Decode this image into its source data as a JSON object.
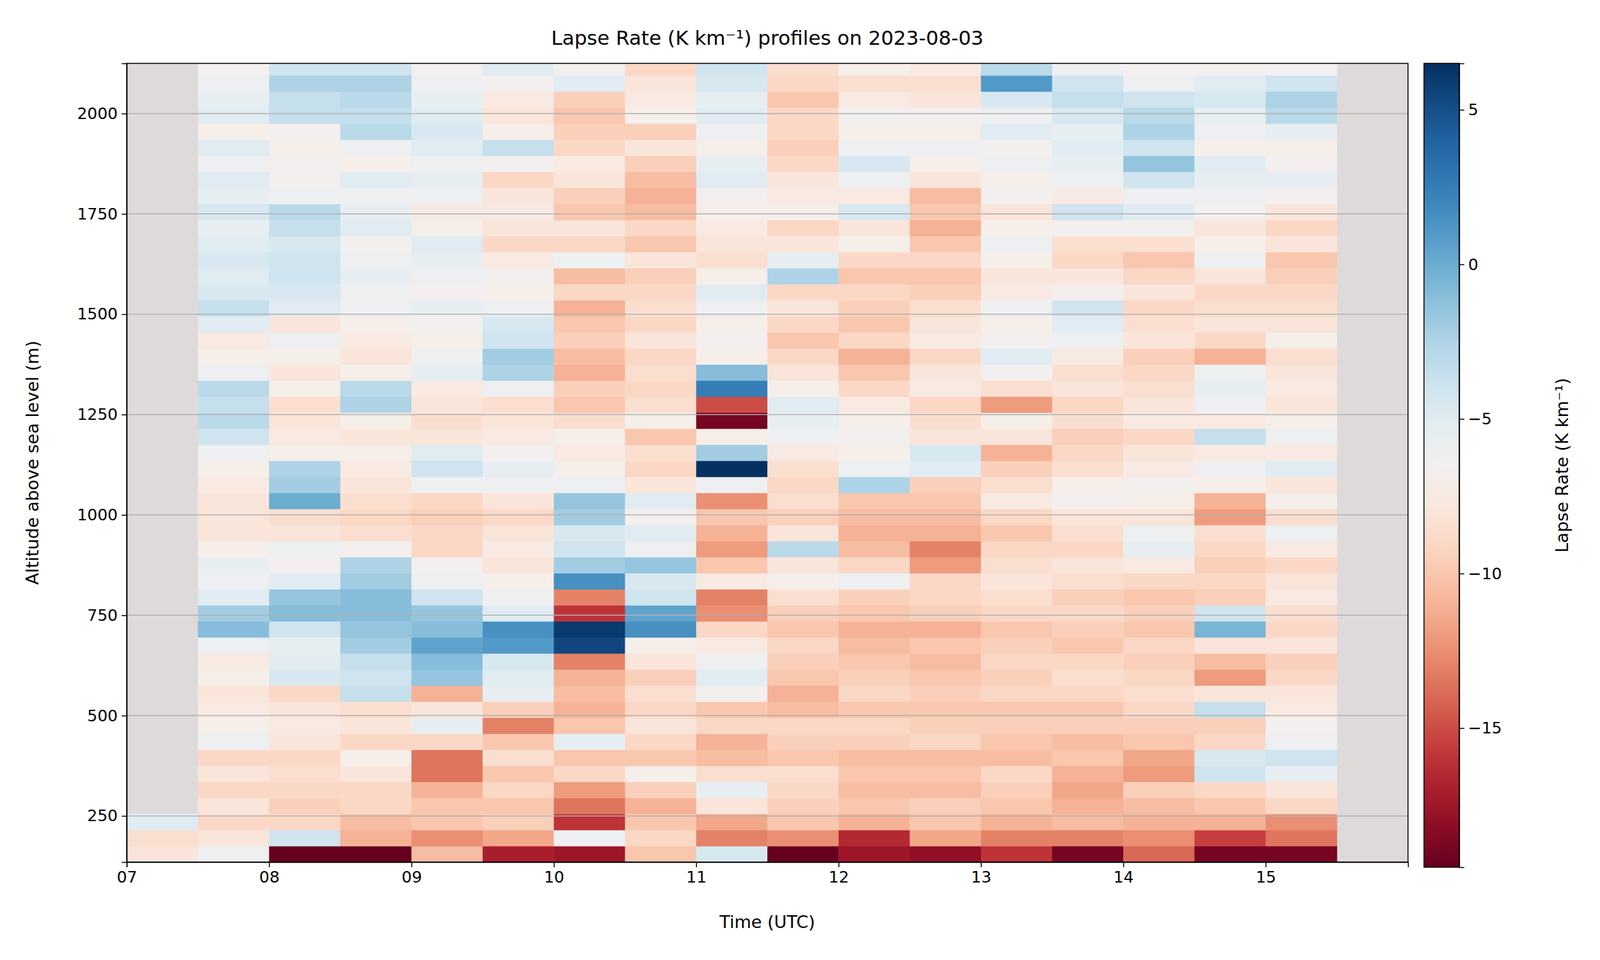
{
  "chart_data": {
    "type": "heatmap",
    "title": "Lapse Rate (K km⁻¹) profiles on 2023-08-03",
    "xlabel": "Time (UTC)",
    "ylabel": "Altitude above sea level (m)",
    "color": "RdBu",
    "grid": true,
    "xlim": [
      7,
      16
    ],
    "xticks": [
      {
        "value": 7,
        "label": "07"
      },
      {
        "value": 8,
        "label": "08"
      },
      {
        "value": 9,
        "label": "09"
      },
      10,
      11,
      12,
      13,
      14,
      15
    ],
    "ylim": [
      135,
      2125
    ],
    "yticks": [
      250,
      500,
      750,
      1000,
      1250,
      1500,
      1750,
      2000
    ],
    "colorbar": {
      "label": "Lapse Rate (K km⁻¹)",
      "range": [
        -19.5,
        6.5
      ],
      "ticks": [
        {
          "value": -15,
          "label": "−15"
        },
        {
          "value": -10,
          "label": "−10"
        },
        {
          "value": -5,
          "label": "−5"
        },
        0,
        5
      ]
    },
    "x": [
      7.25,
      7.75,
      8.25,
      8.75,
      9.25,
      9.75,
      10.25,
      10.75,
      11.25,
      11.75,
      12.25,
      12.75,
      13.25,
      13.75,
      14.25,
      14.75,
      15.25,
      15.75
    ],
    "y": [
      155,
      195,
      235,
      275,
      315,
      355,
      395,
      435,
      475,
      515,
      555,
      595,
      635,
      675,
      715,
      755,
      795,
      835,
      875,
      915,
      955,
      995,
      1035,
      1075,
      1115,
      1155,
      1195,
      1235,
      1275,
      1315,
      1355,
      1395,
      1435,
      1475,
      1515,
      1555,
      1595,
      1635,
      1675,
      1715,
      1755,
      1795,
      1835,
      1875,
      1915,
      1955,
      1995,
      2035,
      2075,
      2115
    ],
    "values": [
      [
        -8,
        -8.5,
        -5,
        null,
        null,
        null,
        null,
        null,
        null,
        null,
        null,
        null,
        null,
        null,
        null,
        null,
        null,
        null,
        null,
        null,
        null,
        null,
        null,
        null,
        null,
        null,
        null,
        null,
        null,
        null,
        null,
        null,
        null,
        null,
        null,
        null,
        null,
        null,
        null,
        null,
        null,
        null,
        null,
        null,
        null,
        null,
        null,
        null,
        null,
        null
      ],
      [
        -6,
        -8,
        -9,
        -8,
        -9,
        -8,
        -9,
        -6,
        -7,
        -7.5,
        -8,
        -7,
        -7.5,
        -6,
        -1,
        -2,
        -5,
        -6,
        -5.5,
        -7,
        -8,
        -8,
        -8,
        -7.5,
        -7,
        -6,
        -4,
        -3,
        -3.5,
        -3,
        -6,
        -7,
        -7.5,
        -5,
        -3.5,
        -4.5,
        -5,
        -4.5,
        -5,
        -5.5,
        -4.5,
        -5.5,
        -5,
        -6,
        -5,
        -7,
        -5,
        -5.5,
        -6,
        -6.5
      ],
      [
        -19.5,
        -4,
        -9,
        -9.5,
        -9,
        -8.5,
        -9,
        -8,
        -7.5,
        -8,
        -9,
        -4.5,
        -5,
        -5.5,
        -4,
        -1,
        -1.5,
        -5,
        -6.5,
        -6,
        -8,
        -8.5,
        0,
        -2,
        -2.5,
        -7,
        -7.5,
        -8,
        -8.5,
        -7,
        -8,
        -7,
        -6,
        -8,
        -5,
        -4.5,
        -4,
        -4,
        -4.5,
        -3.5,
        -3,
        -6,
        -6.5,
        -6.5,
        -7,
        -6.5,
        -3.5,
        -3.5,
        -2.5,
        -4
      ],
      [
        -19.5,
        -11,
        -10.5,
        -9,
        -9,
        -8,
        -7,
        -9,
        -8,
        -8.5,
        -3.5,
        -4,
        -3.5,
        -2,
        -1.5,
        -1,
        -1,
        -2,
        -2.5,
        -6.5,
        -8.5,
        -9,
        -8.5,
        -8,
        -7.5,
        -7,
        -8,
        -7,
        -2.5,
        -3,
        -7,
        -8,
        -7.5,
        -7,
        -6,
        -6,
        -5.5,
        -6,
        -6.5,
        -5,
        -5.5,
        -6,
        -5,
        -7,
        -6,
        -3,
        -3.5,
        -3,
        -2.5,
        -4
      ],
      [
        -10.5,
        -12.5,
        -10,
        -10,
        -11,
        -13.5,
        -13.5,
        -9,
        -5.5,
        -8,
        -11,
        -1.5,
        -1,
        0.5,
        -1,
        -1.5,
        -4,
        -6,
        -6.5,
        -9,
        -9,
        -9.5,
        -9,
        -6,
        -4,
        -5,
        -8,
        -8.5,
        -8,
        -7.5,
        -5.5,
        -6,
        -7,
        -6.5,
        -5.5,
        -6.5,
        -6,
        -5.5,
        -5,
        -7,
        -7.5,
        -6,
        -5.5,
        -6,
        -5,
        -4.5,
        -5,
        -5.5,
        -6,
        -6.5
      ],
      [
        -17,
        -11.5,
        -9.5,
        -10,
        -9,
        -10,
        -8.5,
        -10,
        -13,
        -9.5,
        -5.5,
        -5,
        -4.5,
        1,
        1.5,
        -5,
        -6,
        -7,
        -8,
        -7.5,
        -8,
        -9,
        -8,
        -6,
        -5.5,
        -6.5,
        -7.5,
        -8,
        -8.5,
        -6,
        -2.5,
        -2,
        -4,
        -4.5,
        -6,
        -7,
        -6.5,
        -7.5,
        -9,
        -8,
        -7.5,
        -8,
        -9,
        -6.5,
        -3.5,
        -7,
        -8,
        -7.5,
        -6.5,
        -5
      ],
      [
        -17.5,
        -6,
        -16,
        -13.5,
        -12,
        -9,
        -10,
        -5.5,
        -10,
        -11,
        -10.5,
        -11,
        -13,
        5.5,
        6,
        -16,
        -13,
        1.5,
        -2,
        -4,
        -4.5,
        -2,
        -1.5,
        -6,
        -7,
        -7.5,
        -7,
        -8.5,
        -10,
        -9.5,
        -11,
        -10.5,
        -9.5,
        -10,
        -11,
        -9,
        -10.5,
        -6,
        -9,
        -8,
        -10,
        -9.5,
        -8,
        -7.5,
        -9,
        -9.5,
        -10,
        -9.5,
        -5,
        -6.5
      ],
      [
        -10,
        -9,
        -10,
        -11,
        -9.5,
        -7,
        -10,
        -9,
        -8,
        -9,
        -8.5,
        -9.5,
        -8,
        -7,
        1.5,
        0.5,
        -4,
        -4.5,
        -1.5,
        -6,
        -5,
        -6.5,
        -5,
        -8,
        -9,
        -8.5,
        -10,
        -7,
        -8.5,
        -9,
        -8.5,
        -9,
        -8,
        -9,
        -8.5,
        -9,
        -9.5,
        -8,
        -10,
        -9,
        -10.5,
        -11,
        -10.5,
        -9.5,
        -8,
        -9.5,
        -7,
        -7.5,
        -8,
        -9
      ],
      [
        -4.5,
        -13,
        -11.5,
        -8,
        -5.5,
        -8.5,
        -10.5,
        -11,
        -9,
        -10,
        -6.5,
        -5,
        -6,
        -7.5,
        -9,
        -12.5,
        -13,
        -7.5,
        -10,
        -12,
        -11,
        -10,
        -12.5,
        -6,
        6.5,
        -2,
        -7,
        -19,
        -15,
        2.5,
        -1,
        -7,
        -6.5,
        -7,
        -6,
        -5,
        -7,
        -8.5,
        -8,
        -7.5,
        -7,
        -6.5,
        -5,
        -5.5,
        -7,
        -6,
        -5,
        -5.5,
        -4.5,
        -4
      ],
      [
        -19.5,
        -12.5,
        -10,
        -9.5,
        -9,
        -8.5,
        -10,
        -9.5,
        -9,
        -10.5,
        -11,
        -10,
        -9.5,
        -9,
        -10,
        -9.5,
        -8.5,
        -7,
        -8,
        -3,
        -8,
        -9.5,
        -8.5,
        -9,
        -8.5,
        -7.5,
        -6,
        -5.5,
        -5,
        -7,
        -8,
        -9,
        -10,
        -9,
        -8,
        -9,
        -2.5,
        -5.5,
        -8,
        -9,
        -7,
        -7.5,
        -8,
        -9,
        -9.5,
        -9,
        -9,
        -10,
        -9,
        -8.5
      ],
      [
        -17.5,
        -16.5,
        -11,
        -10,
        -10.5,
        -10,
        -10.5,
        -9.5,
        -9,
        -10,
        -9,
        -9.5,
        -10,
        -10.5,
        -11,
        -10,
        -9.5,
        -6,
        -9,
        -10.5,
        -11,
        -10.5,
        -10,
        -2.5,
        -6,
        -7,
        -6.5,
        -7,
        -7.5,
        -9,
        -10,
        -11,
        -9,
        -10,
        -9.5,
        -9,
        -10,
        -9,
        -7,
        -8,
        -4.5,
        -7.5,
        -6,
        -4.5,
        -6,
        -7,
        -6.5,
        -7.5,
        -8.5,
        -7
      ],
      [
        -18,
        -11.5,
        -10,
        -9.5,
        -10.5,
        -10,
        -10.5,
        -9,
        -9.5,
        -10,
        -9.5,
        -10,
        -10.5,
        -10,
        -11,
        -9.5,
        -9,
        -9,
        -12,
        -13,
        -11,
        -10.5,
        -10,
        -9.5,
        -5,
        -4.5,
        -8,
        -8.5,
        -9,
        -7.5,
        -8,
        -9,
        -7.5,
        -8,
        -8.5,
        -9.5,
        -10,
        -9,
        -10,
        -11,
        -10,
        -10.5,
        -8,
        -7,
        -6,
        -7,
        -6.5,
        -8,
        -8.5,
        -7.5
      ],
      [
        -16,
        -13,
        -11,
        -10,
        -9.5,
        -9,
        -10.5,
        -10,
        -9.5,
        -10,
        -9,
        -9.5,
        -9,
        -9.5,
        -10,
        -9,
        -8.5,
        -8,
        -8.5,
        -9,
        -10,
        -9,
        -7.5,
        -8.5,
        -9.5,
        -11,
        -8,
        -7,
        -12,
        -8.5,
        -6.5,
        -5,
        -6.5,
        -7,
        -6,
        -7.5,
        -8,
        -7,
        -6,
        -7,
        -8,
        -6.5,
        -7,
        -6,
        -6.5,
        -5,
        -6,
        -4.5,
        1,
        -3
      ],
      [
        -19,
        -13,
        -10.5,
        -11,
        -11.5,
        -11,
        -10,
        -10.5,
        -9.5,
        -10,
        -9,
        -8.5,
        -9,
        -10,
        -9.5,
        -9,
        -9.5,
        -8.5,
        -8,
        -9,
        -8.5,
        -8,
        -6.5,
        -7,
        -8.5,
        -9,
        -9.5,
        -8.5,
        -9,
        -8,
        -8.5,
        -7.5,
        -6,
        -5,
        -4,
        -6.5,
        -8,
        -9,
        -8.5,
        -6.5,
        -4,
        -7.5,
        -6,
        -5.5,
        -5,
        -5.5,
        -4.5,
        -3.5,
        -4,
        -6
      ],
      [
        -14,
        -12.5,
        -11,
        -10.5,
        -9.5,
        -12,
        -11.5,
        -10,
        -9.5,
        -9,
        -8.5,
        -9,
        -9.5,
        -9,
        -10,
        -9.5,
        -10,
        -9,
        -7.5,
        -5.5,
        -6,
        -8,
        -7,
        -6.5,
        -7.5,
        -8,
        -9,
        -7.5,
        -8,
        -8.5,
        -9,
        -9.5,
        -8,
        -8.5,
        -9,
        -8,
        -9,
        -10,
        -8.5,
        -6.5,
        -5,
        -6,
        -4,
        -1.5,
        -4,
        -2.5,
        -3,
        -4,
        -6,
        -6.5
      ],
      [
        -19,
        -15.5,
        -11,
        -10,
        -9,
        -4,
        -4.5,
        -9,
        -9.5,
        -3.5,
        -8,
        -12,
        -10.5,
        -8,
        -0.5,
        -4,
        -9.5,
        -9,
        -9.5,
        -9,
        -8.5,
        -12,
        -11,
        -7,
        -6,
        -7.5,
        -3.5,
        -7.5,
        -6,
        -5.5,
        -6,
        -11,
        -9,
        -8,
        -8.5,
        -9,
        -8,
        -6,
        -7,
        -8,
        -6.5,
        -6,
        -5.5,
        -5,
        -7,
        -6,
        -5.5,
        -4.5,
        -5,
        -6.5
      ],
      [
        -19,
        -13.5,
        -12.5,
        -9,
        -8,
        -5.5,
        -4,
        -6,
        -6.5,
        -7.5,
        -8,
        -9,
        -9.5,
        -8,
        -9,
        -8.5,
        -7.5,
        -8,
        -9,
        -7.5,
        -6,
        -8.5,
        -7,
        -8,
        -5,
        -7.5,
        -6,
        -7,
        -8,
        -7.5,
        -8,
        -8.5,
        -7,
        -8,
        -8.5,
        -9,
        -9.5,
        -10,
        -8,
        -9,
        -8,
        -6.5,
        -5.5,
        -6.5,
        -7,
        -5.5,
        -3,
        -2.5,
        -4,
        -6.5
      ],
      [
        null,
        null,
        null,
        null,
        null,
        null,
        null,
        null,
        null,
        null,
        null,
        null,
        null,
        null,
        null,
        null,
        null,
        null,
        null,
        null,
        null,
        null,
        null,
        null,
        null,
        null,
        null,
        null,
        null,
        null,
        null,
        null,
        null,
        null,
        null,
        null,
        null,
        null,
        null,
        null,
        null,
        null,
        null,
        null,
        null,
        null,
        null,
        null,
        null,
        null
      ]
    ]
  }
}
